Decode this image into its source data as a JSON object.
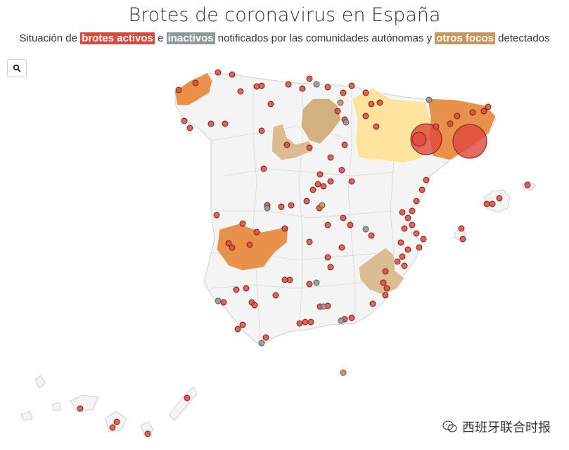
{
  "title": "Brotes de coronavirus en España",
  "subtitle": {
    "prefix": "Situación de",
    "active": "brotes activos",
    "conj1": "e",
    "inactive": "inactivos",
    "middle": "notificados por las comunidades autónomas y",
    "other": "otros focos",
    "suffix": "detectados"
  },
  "controls": {
    "search_icon": "search-icon"
  },
  "watermark": {
    "text": "西班牙联合时报",
    "icon": "wechat-icon"
  },
  "colors": {
    "active": "#e0473c",
    "inactive": "#8e9a9a",
    "other": "#c8955b",
    "region_light": "#f4f4f4",
    "region_orange": "#e8914a",
    "region_tan": "#d7b488",
    "region_yellow": "#fde39e"
  }
}
